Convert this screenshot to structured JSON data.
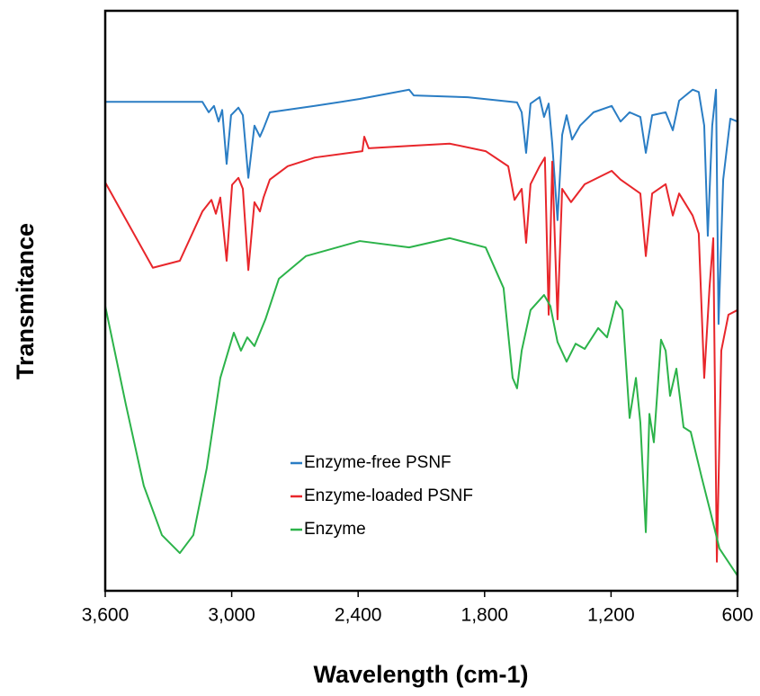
{
  "chart_data": {
    "type": "line",
    "xlabel": "Wavelength (cm-1)",
    "ylabel": "Transmitance",
    "xlim": [
      3600,
      600
    ],
    "ylim": [
      0,
      100
    ],
    "xticks": [
      {
        "value": 3600,
        "label": "3,600"
      },
      {
        "value": 3000,
        "label": "3,000"
      },
      {
        "value": 2400,
        "label": "2,400"
      },
      {
        "value": 1800,
        "label": "1,800"
      },
      {
        "value": 1200,
        "label": "1,200"
      },
      600
    ],
    "series": [
      {
        "name": "Enzyme-free PSNF",
        "color": "#2a7dc4",
        "x": [
          3600,
          3139,
          3109,
          3084,
          3062,
          3045,
          3024,
          3003,
          2968,
          2947,
          2921,
          2892,
          2866,
          2849,
          2819,
          2606,
          2392,
          2158,
          2136,
          1880,
          1646,
          1624,
          1603,
          1582,
          1539,
          1518,
          1496,
          1479,
          1454,
          1432,
          1411,
          1385,
          1347,
          1283,
          1197,
          1155,
          1112,
          1061,
          1035,
          1005,
          941,
          907,
          877,
          813,
          784,
          758,
          741,
          720,
          702,
          690,
          668,
          634,
          600
        ],
        "values": [
          84.3,
          84.3,
          82.5,
          83.6,
          80.9,
          82.9,
          73.6,
          82.0,
          83.3,
          82.0,
          71.2,
          80.2,
          78.3,
          79.7,
          82.5,
          83.6,
          84.8,
          86.4,
          85.4,
          85.1,
          84.2,
          82.5,
          75.5,
          84.0,
          85.1,
          81.7,
          84.0,
          77.1,
          63.9,
          78.6,
          82.0,
          77.8,
          80.2,
          82.5,
          83.6,
          80.9,
          82.5,
          81.7,
          75.5,
          82.0,
          82.5,
          79.4,
          84.5,
          86.4,
          86.0,
          80.2,
          61.2,
          80.2,
          86.4,
          46.0,
          70.9,
          81.4,
          80.9
        ]
      },
      {
        "name": "Enzyme-loaded PSNF",
        "color": "#e8262b",
        "x": [
          3600,
          3374,
          3246,
          3139,
          3096,
          3075,
          3054,
          3024,
          2998,
          2968,
          2947,
          2921,
          2892,
          2866,
          2849,
          2819,
          2734,
          2606,
          2380,
          2371,
          2350,
          2158,
          1966,
          1795,
          1688,
          1658,
          1624,
          1603,
          1582,
          1539,
          1514,
          1496,
          1479,
          1454,
          1432,
          1390,
          1325,
          1197,
          1155,
          1061,
          1035,
          1005,
          941,
          907,
          877,
          813,
          784,
          758,
          733,
          715,
          698,
          677,
          643,
          600
        ],
        "values": [
          70.4,
          55.7,
          56.9,
          65.4,
          67.4,
          65.0,
          67.8,
          56.9,
          70.0,
          71.2,
          69.3,
          55.3,
          67.0,
          65.4,
          67.8,
          70.9,
          73.2,
          74.7,
          75.8,
          78.3,
          76.3,
          76.7,
          77.1,
          75.8,
          73.2,
          67.4,
          69.3,
          60.0,
          70.1,
          73.2,
          74.7,
          47.6,
          74.0,
          46.8,
          69.3,
          67.0,
          70.1,
          72.4,
          70.9,
          68.5,
          57.7,
          68.5,
          70.1,
          64.7,
          68.5,
          64.7,
          61.6,
          36.7,
          52.2,
          60.8,
          5.0,
          41.4,
          47.6,
          48.4
        ]
      },
      {
        "name": "Enzyme",
        "color": "#2cb34a",
        "x": [
          3600,
          3502,
          3417,
          3331,
          3246,
          3182,
          3118,
          3054,
          2990,
          2956,
          2926,
          2892,
          2840,
          2776,
          2648,
          2392,
          2158,
          1966,
          1795,
          1710,
          1667,
          1646,
          1624,
          1582,
          1518,
          1488,
          1454,
          1411,
          1368,
          1325,
          1261,
          1219,
          1176,
          1146,
          1112,
          1082,
          1061,
          1035,
          1018,
          997,
          963,
          941,
          920,
          890,
          856,
          822,
          771,
          728,
          686,
          600
        ],
        "values": [
          49.1,
          32.1,
          18.1,
          9.6,
          6.5,
          9.6,
          21.2,
          36.7,
          44.5,
          41.4,
          43.7,
          42.2,
          46.8,
          53.8,
          57.7,
          60.3,
          59.2,
          60.8,
          59.2,
          52.2,
          36.7,
          34.9,
          41.4,
          48.4,
          51.0,
          49.1,
          42.9,
          39.5,
          42.6,
          41.7,
          45.3,
          43.7,
          49.9,
          48.4,
          29.8,
          36.7,
          29.0,
          10.1,
          30.5,
          25.6,
          43.3,
          41.4,
          33.6,
          38.3,
          28.2,
          27.4,
          19.7,
          13.5,
          7.3,
          2.6
        ]
      }
    ]
  }
}
